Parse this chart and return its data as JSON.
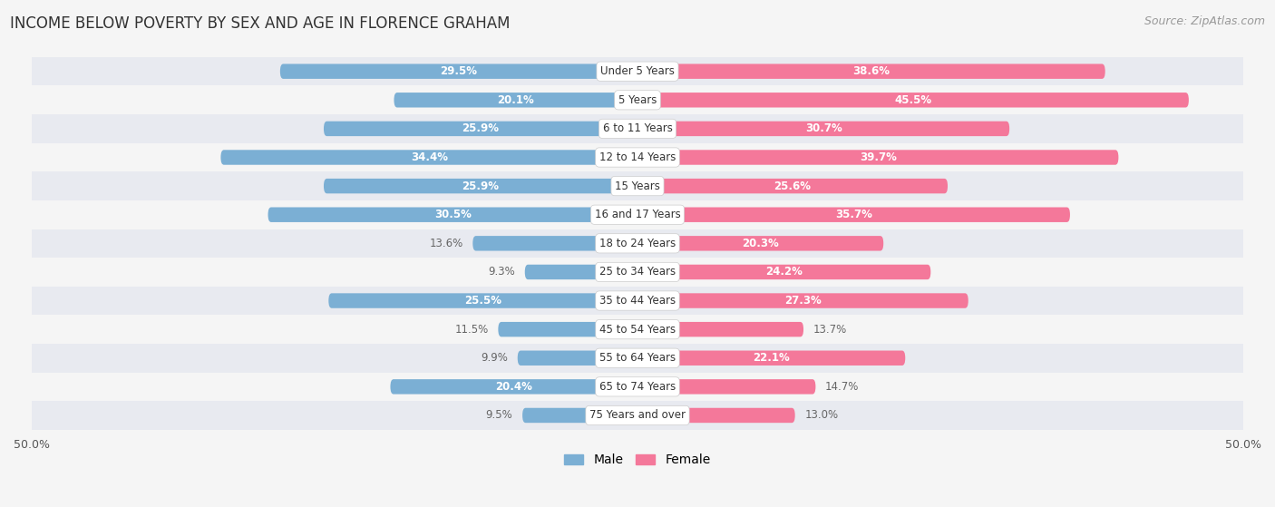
{
  "title": "INCOME BELOW POVERTY BY SEX AND AGE IN FLORENCE GRAHAM",
  "source": "Source: ZipAtlas.com",
  "categories": [
    "Under 5 Years",
    "5 Years",
    "6 to 11 Years",
    "12 to 14 Years",
    "15 Years",
    "16 and 17 Years",
    "18 to 24 Years",
    "25 to 34 Years",
    "35 to 44 Years",
    "45 to 54 Years",
    "55 to 64 Years",
    "65 to 74 Years",
    "75 Years and over"
  ],
  "male_values": [
    29.5,
    20.1,
    25.9,
    34.4,
    25.9,
    30.5,
    13.6,
    9.3,
    25.5,
    11.5,
    9.9,
    20.4,
    9.5
  ],
  "female_values": [
    38.6,
    45.5,
    30.7,
    39.7,
    25.6,
    35.7,
    20.3,
    24.2,
    27.3,
    13.7,
    22.1,
    14.7,
    13.0
  ],
  "male_color": "#7bafd4",
  "female_color": "#f4789a",
  "male_label_color_inside": "#ffffff",
  "male_label_color_outside": "#666666",
  "female_label_color_inside": "#ffffff",
  "female_label_color_outside": "#666666",
  "row_colors": [
    "#e8eaf0",
    "#f5f5f5"
  ],
  "axis_limit": 50.0,
  "bar_height": 0.52,
  "legend_male": "Male",
  "legend_female": "Female",
  "title_fontsize": 12,
  "source_fontsize": 9,
  "label_fontsize": 8.5,
  "cat_fontsize": 8.5,
  "axis_label_fontsize": 9,
  "inside_threshold_male": 15.0,
  "inside_threshold_female": 18.0
}
